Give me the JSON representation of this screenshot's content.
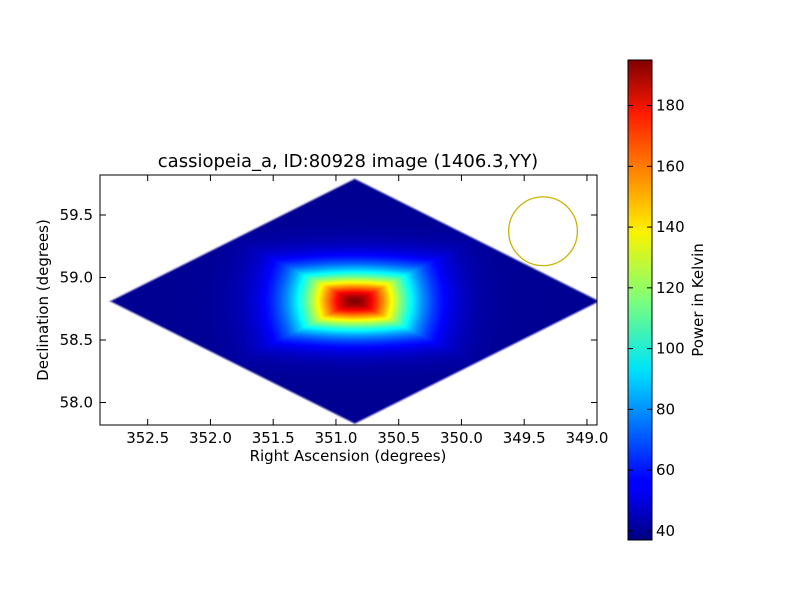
{
  "chart_data": {
    "type": "heatmap",
    "title": "cassiopeia_a, ID:80928 image (1406.3,YY)",
    "xlabel": "Right Ascension (degrees)",
    "ylabel": "Declination (degrees)",
    "xlim": [
      352.88,
      348.92
    ],
    "ylim": [
      57.82,
      59.82
    ],
    "x_ticks": [
      352.5,
      352.0,
      351.5,
      351.0,
      350.5,
      350.0,
      349.5,
      349.0
    ],
    "x_tick_labels": [
      "352.5",
      "352.0",
      "351.5",
      "351.0",
      "350.5",
      "350.0",
      "349.5",
      "349.0"
    ],
    "y_ticks": [
      58.0,
      58.5,
      59.0,
      59.5
    ],
    "y_tick_labels": [
      "58.0",
      "58.5",
      "59.0",
      "59.5"
    ],
    "grid": false,
    "colormap": "jet",
    "colorbar": {
      "label": "Power in Kelvin",
      "vmin": 37,
      "vmax": 195,
      "ticks": [
        40,
        60,
        80,
        100,
        120,
        140,
        160,
        180
      ],
      "tick_labels": [
        "40",
        "60",
        "80",
        "100",
        "120",
        "140",
        "160",
        "180"
      ]
    },
    "coverage_region": {
      "shape": "diamond",
      "center_ra": 350.85,
      "center_dec": 58.81,
      "ra_half_width": 1.97,
      "dec_half_height": 0.99
    },
    "source": {
      "name": "cassiopeia_a",
      "ra": 350.85,
      "dec": 58.81,
      "peak_kelvin": 195,
      "edge_kelvin": 40
    },
    "annotations": [
      {
        "type": "circle",
        "ra": 349.35,
        "dec": 59.37,
        "radius_deg": 0.37,
        "color": "#c8b400"
      }
    ]
  }
}
